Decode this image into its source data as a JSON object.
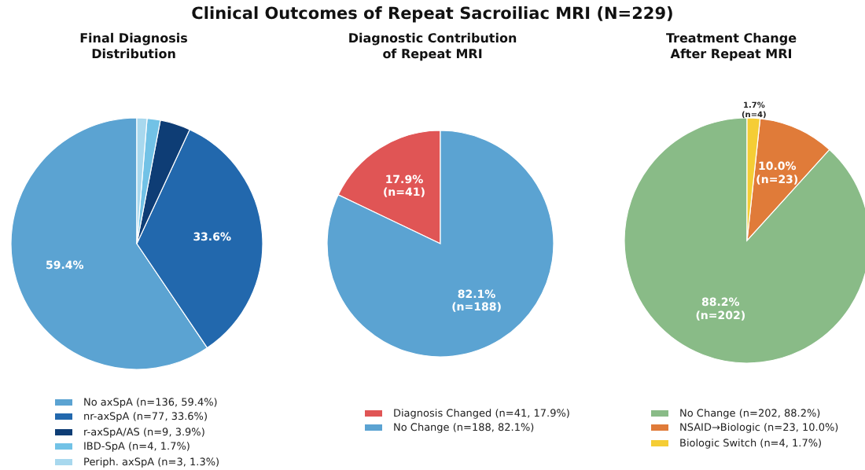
{
  "chart_data": [
    {
      "type": "pie",
      "title": "Clinical Outcomes of Repeat Sacroiliac MRI (N=229)",
      "subtitle": "Final Diagnosis\nDistribution",
      "categories": [
        "No axSpA (n=136, 59.4%)",
        "nr-axSpA (n=77, 33.6%)",
        "r-axSpA/AS (n=9, 3.9%)",
        "IBD-SpA (n=4, 1.7%)",
        "Periph. axSpA (n=3, 1.3%)"
      ],
      "values": [
        59.4,
        33.6,
        3.9,
        1.7,
        1.3
      ],
      "colors": [
        "#5ba3d2",
        "#2268ad",
        "#0e3d75",
        "#72c2e6",
        "#a8d8ee"
      ],
      "value_labels": [
        "59.4%",
        "33.6%",
        null,
        null,
        null
      ],
      "legend": "bottom"
    },
    {
      "type": "pie",
      "subtitle": "Diagnostic Contribution\nof Repeat MRI",
      "categories": [
        "Diagnosis Changed (n=41, 17.9%)",
        "No Change (n=188, 82.1%)"
      ],
      "values": [
        17.9,
        82.1
      ],
      "colors": [
        "#e05555",
        "#5ba3d2"
      ],
      "value_labels": [
        "17.9%\n(n=41)",
        "82.1%\n(n=188)"
      ],
      "legend": "bottom"
    },
    {
      "type": "pie",
      "subtitle": "Treatment Change\nAfter Repeat MRI",
      "categories": [
        "No Change (n=202, 88.2%)",
        "NSAID→Biologic (n=23, 10.0%)",
        "Biologic Switch (n=4, 1.7%)"
      ],
      "values": [
        88.2,
        10.0,
        1.7
      ],
      "colors": [
        "#89bb87",
        "#e07b39",
        "#f5cd35"
      ],
      "value_labels": [
        "88.2%\n(n=202)",
        "10.0%\n(n=23)",
        "1.7%\n(n=4)"
      ],
      "legend": "bottom"
    }
  ]
}
